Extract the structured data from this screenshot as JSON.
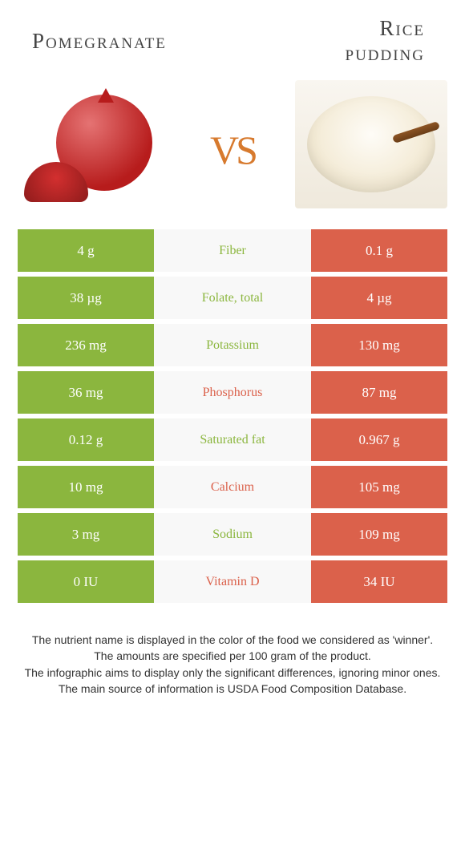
{
  "colors": {
    "left_bar": "#8bb63e",
    "right_bar": "#db614b",
    "mid_bg": "#f8f8f8",
    "left_text": "#8bb63e",
    "right_text": "#db614b",
    "vs": "#d77a2e",
    "title": "#444444"
  },
  "header": {
    "left_title": "Pomegranate",
    "right_title_line1": "Rice",
    "right_title_line2": "pudding",
    "vs_label": "vs"
  },
  "nutrients": [
    {
      "name": "Fiber",
      "left": "4 g",
      "right": "0.1 g",
      "winner": "left"
    },
    {
      "name": "Folate, total",
      "left": "38 µg",
      "right": "4 µg",
      "winner": "left"
    },
    {
      "name": "Potassium",
      "left": "236 mg",
      "right": "130 mg",
      "winner": "left"
    },
    {
      "name": "Phosphorus",
      "left": "36 mg",
      "right": "87 mg",
      "winner": "right"
    },
    {
      "name": "Saturated fat",
      "left": "0.12 g",
      "right": "0.967 g",
      "winner": "left"
    },
    {
      "name": "Calcium",
      "left": "10 mg",
      "right": "105 mg",
      "winner": "right"
    },
    {
      "name": "Sodium",
      "left": "3 mg",
      "right": "109 mg",
      "winner": "left"
    },
    {
      "name": "Vitamin D",
      "left": "0 IU",
      "right": "34 IU",
      "winner": "right"
    }
  ],
  "footer": {
    "line1": "The nutrient name is displayed in the color of the food we considered as 'winner'.",
    "line2": "The amounts are specified per 100 gram of the product.",
    "line3": "The infographic aims to display only the significant differences, ignoring minor ones.",
    "line4": "The main source of information is USDA Food Composition Database."
  }
}
